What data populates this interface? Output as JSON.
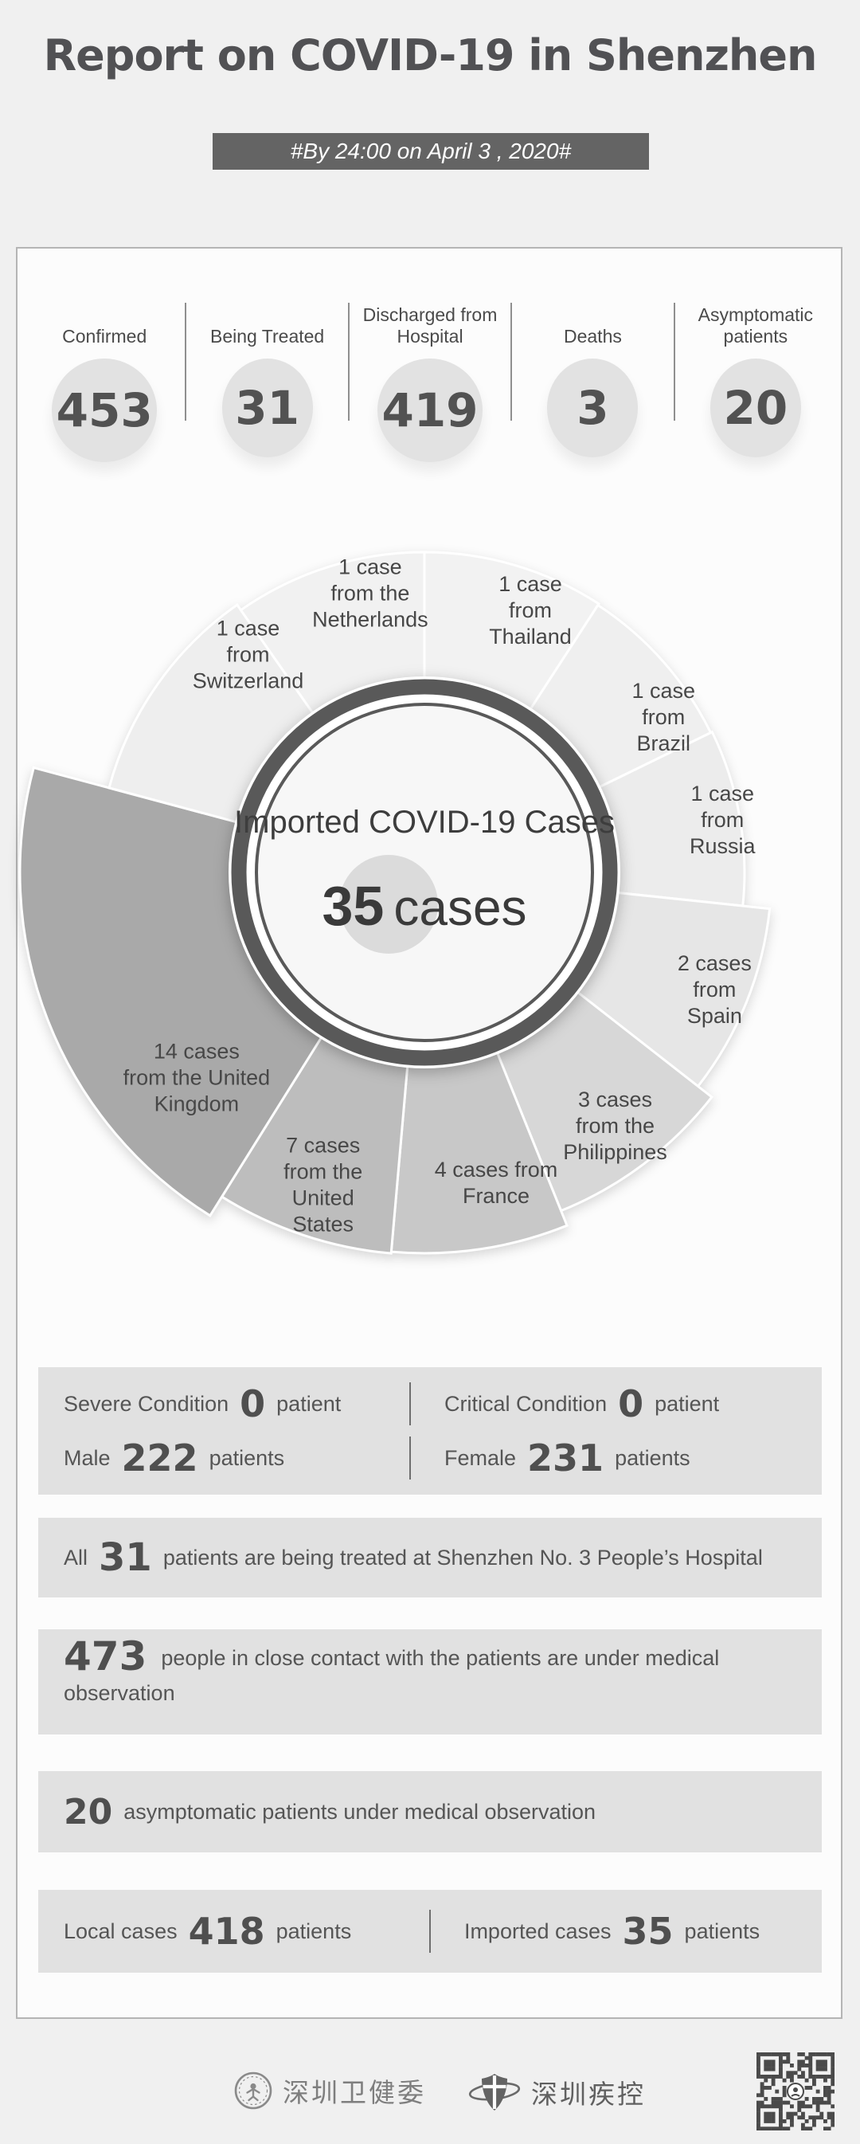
{
  "page_title": "Report on COVID-19 in Shenzhen",
  "subtitle_banner": "#By 24:00 on April 3 , 2020#",
  "summary_stats": [
    {
      "label": "Confirmed",
      "value": "453"
    },
    {
      "label": "Being Treated",
      "value": "31"
    },
    {
      "label": "Discharged from Hospital",
      "value": "419"
    },
    {
      "label": "Deaths",
      "value": "3"
    },
    {
      "label": "Asymptomatic patients",
      "value": "20"
    }
  ],
  "chart_data": {
    "type": "pie",
    "title": "Imported COVID-19 Cases",
    "center_value": "35",
    "center_unit": "cases",
    "total": 35,
    "unit": "cases",
    "legend_position": "none",
    "slices": [
      {
        "label": "Thailand",
        "value": 1,
        "display": [
          "1 case",
          "from",
          "Thailand"
        ],
        "start_deg": 0,
        "end_deg": 33,
        "outer_radius": 402,
        "label_radius": 355,
        "label_angle": 22,
        "color": "#f2f2f2"
      },
      {
        "label": "Brazil",
        "value": 1,
        "display": [
          "1 case",
          "from",
          "Brazil"
        ],
        "start_deg": 33,
        "end_deg": 64,
        "outer_radius": 400,
        "label_radius": 358,
        "label_angle": 57,
        "color": "#efefef"
      },
      {
        "label": "Russia",
        "value": 1,
        "display": [
          "1 case",
          "from",
          "Russia"
        ],
        "start_deg": 64,
        "end_deg": 96,
        "outer_radius": 402,
        "label_radius": 380,
        "label_angle": 80,
        "color": "#ececec"
      },
      {
        "label": "Spain",
        "value": 2,
        "display": [
          "2 cases",
          "from",
          "Spain"
        ],
        "start_deg": 96,
        "end_deg": 128,
        "outer_radius": 436,
        "label_radius": 393,
        "label_angle": 112,
        "color": "#e6e6e6"
      },
      {
        "label": "Philippines",
        "value": 3,
        "display": [
          "3 cases",
          "from the",
          "Philippines"
        ],
        "start_deg": 128,
        "end_deg": 158,
        "outer_radius": 458,
        "label_radius": 398,
        "label_angle": 143,
        "color": "#d7d7d7"
      },
      {
        "label": "France",
        "value": 4,
        "display": [
          "4 cases from",
          "France"
        ],
        "start_deg": 158,
        "end_deg": 185,
        "outer_radius": 478,
        "label_radius": 400,
        "label_angle": 167,
        "color": "#c8c8c8"
      },
      {
        "label": "United States",
        "value": 7,
        "display": [
          "7 cases",
          "from the",
          "United",
          "States"
        ],
        "start_deg": 185,
        "end_deg": 212,
        "outer_radius": 480,
        "label_radius": 412,
        "label_angle": 198,
        "color": "#bdbdbd"
      },
      {
        "label": "United Kingdom",
        "value": 14,
        "display": [
          "14 cases",
          "from the United",
          "Kingdom"
        ],
        "start_deg": 212,
        "end_deg": 285,
        "outer_radius": 508,
        "label_radius": 385,
        "label_angle": 228,
        "color": "#a9a9a9"
      },
      {
        "label": "Switzerland",
        "value": 1,
        "display": [
          "1 case",
          "from",
          "Switzerland"
        ],
        "start_deg": 285,
        "end_deg": 325,
        "outer_radius": 410,
        "label_radius": 352,
        "label_angle": 321,
        "color": "#eeeeee"
      },
      {
        "label": "Netherlands",
        "value": 1,
        "display": [
          "1 case",
          "from the",
          "Netherlands"
        ],
        "start_deg": 325,
        "end_deg": 360,
        "outer_radius": 402,
        "label_radius": 357,
        "label_angle": 349,
        "color": "#f1f1f1"
      }
    ],
    "center_style": {
      "ring_color": "#595959",
      "inner_fill": "#f7f7f7",
      "value_highlight_color": "#dbdbdb"
    }
  },
  "condition_box": {
    "severe_label": "Severe Condition",
    "severe_value": "0",
    "severe_unit": "patient",
    "critical_label": "Critical Condition",
    "critical_value": "0",
    "critical_unit": "patient",
    "male_label": "Male",
    "male_value": "222",
    "male_unit": "patients",
    "female_label": "Female",
    "female_value": "231",
    "female_unit": "patients"
  },
  "hospital_box": {
    "prefix": "All",
    "value": "31",
    "suffix": "patients are being treated at Shenzhen No. 3 People’s Hospital"
  },
  "contact_box": {
    "value": "473",
    "text": "people in close contact with the patients are under medical observation"
  },
  "asymptomatic_box": {
    "value": "20",
    "text": "asymptomatic patients under medical observation"
  },
  "cases_box": {
    "local_label": "Local cases",
    "local_value": "418",
    "local_unit": "patients",
    "imported_label": "Imported cases",
    "imported_value": "35",
    "imported_unit": "patients"
  },
  "footer": {
    "org1_label": "深圳卫健委",
    "org2_label": "深圳疾控"
  },
  "colors": {
    "page_background": "#f0f0f0",
    "card_background": "#fcfcfc",
    "banner_background": "#646464",
    "box_background": "#e1e1e1",
    "ring_color": "#595959",
    "text_color": "#515154",
    "qr_color": "#4a4a4a"
  }
}
